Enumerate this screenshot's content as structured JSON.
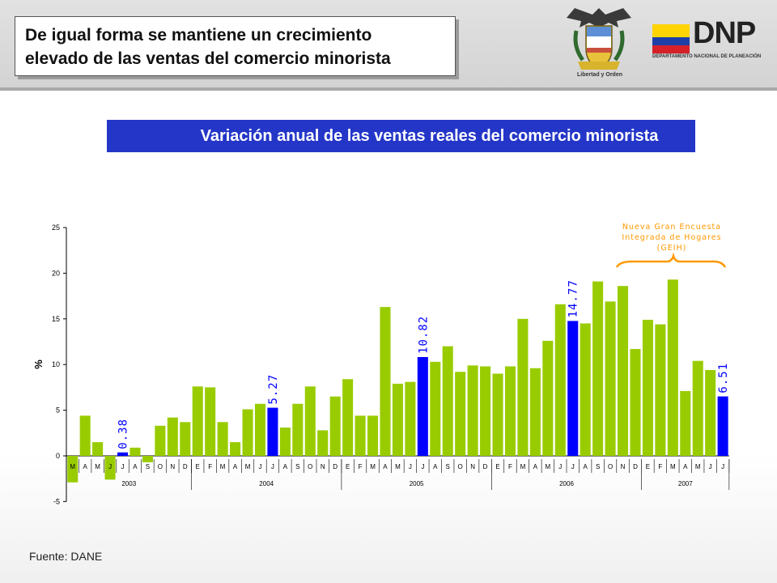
{
  "header": {
    "title_line1": "De igual forma se mantiene un crecimiento",
    "title_line2": "elevado de las ventas del comercio minorista",
    "seal_caption": "Libertad y Orden",
    "logo_text": "DNP",
    "logo_subtitle": "DEPARTAMENTO NACIONAL DE PLANEACIÓN"
  },
  "chart_title": "Variación anual de las ventas reales del comercio minorista",
  "source": "Fuente: DANE",
  "colors": {
    "bar": "#99cc00",
    "highlight": "#0000ff",
    "title_bg": "#2436c8",
    "annotation": "#ff9900"
  },
  "chart_data": {
    "type": "bar",
    "ylabel": "%",
    "ylim": [
      -5,
      25
    ],
    "yticks": [
      "-5",
      "0",
      "5",
      "10",
      "15",
      "20",
      "25"
    ],
    "categories": [
      "M",
      "A",
      "M",
      "J",
      "J",
      "A",
      "S",
      "O",
      "N",
      "D",
      "E",
      "F",
      "M",
      "A",
      "M",
      "J",
      "J",
      "A",
      "S",
      "O",
      "N",
      "D",
      "E",
      "F",
      "M",
      "A",
      "M",
      "J",
      "J",
      "A",
      "S",
      "O",
      "N",
      "D",
      "E",
      "F",
      "M",
      "A",
      "M",
      "J",
      "J",
      "A",
      "S",
      "O",
      "N",
      "D",
      "E",
      "F",
      "M",
      "A",
      "M",
      "J",
      "J"
    ],
    "values": [
      -2.9,
      4.4,
      1.5,
      -2.6,
      0.38,
      0.9,
      -0.7,
      3.3,
      4.2,
      3.7,
      7.6,
      7.5,
      3.7,
      1.5,
      5.1,
      5.7,
      5.27,
      3.1,
      5.7,
      7.6,
      2.8,
      6.5,
      8.4,
      4.4,
      4.4,
      16.3,
      7.9,
      8.1,
      10.82,
      10.3,
      12.0,
      9.2,
      9.9,
      9.8,
      9.0,
      9.8,
      15.0,
      9.6,
      12.6,
      16.6,
      14.77,
      14.5,
      19.1,
      16.9,
      18.6,
      11.7,
      14.9,
      14.4,
      19.3,
      7.1,
      10.4,
      9.4,
      6.51
    ],
    "highlighted": [
      {
        "index": 4,
        "label": "0.38"
      },
      {
        "index": 16,
        "label": "5.27"
      },
      {
        "index": 28,
        "label": "10.82"
      },
      {
        "index": 40,
        "label": "14.77"
      },
      {
        "index": 52,
        "label": "6.51"
      }
    ],
    "years": [
      {
        "label": "2003",
        "start": 0,
        "count": 10
      },
      {
        "label": "2004",
        "start": 10,
        "count": 12
      },
      {
        "label": "2005",
        "start": 22,
        "count": 12
      },
      {
        "label": "2006",
        "start": 34,
        "count": 12
      },
      {
        "label": "2007",
        "start": 46,
        "count": 7
      }
    ],
    "annotation": [
      "Nueva Gran Encuesta",
      "Integrada de Hogares",
      "(GEIH)"
    ]
  }
}
